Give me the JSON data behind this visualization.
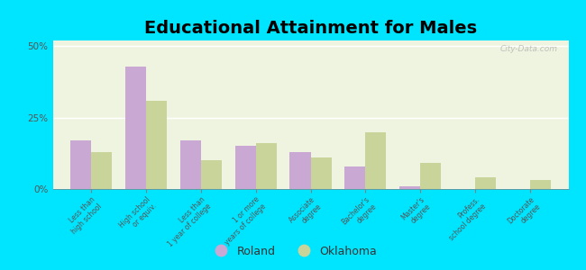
{
  "title": "Educational Attainment for Males",
  "categories": [
    "Less than\nhigh school",
    "High school\nor equiv.",
    "Less than\n1 year of college",
    "1 or more\nyears of college",
    "Associate\ndegree",
    "Bachelor's\ndegree",
    "Master's\ndegree",
    "Profess.\nschool degree",
    "Doctorate\ndegree"
  ],
  "roland_values": [
    17.0,
    43.0,
    17.0,
    15.0,
    13.0,
    8.0,
    1.0,
    0.0,
    0.0
  ],
  "oklahoma_values": [
    13.0,
    31.0,
    10.0,
    16.0,
    11.0,
    20.0,
    9.0,
    4.0,
    3.0
  ],
  "roland_color": "#c9a8d4",
  "oklahoma_color": "#c8d49a",
  "bg_outer": "#00e5ff",
  "bg_plot": "#eef4e0",
  "yticks": [
    0,
    25,
    50
  ],
  "ylim": [
    0,
    52
  ],
  "title_fontsize": 14,
  "legend_labels": [
    "Roland",
    "Oklahoma"
  ],
  "bar_width": 0.38,
  "watermark": "City-Data.com"
}
